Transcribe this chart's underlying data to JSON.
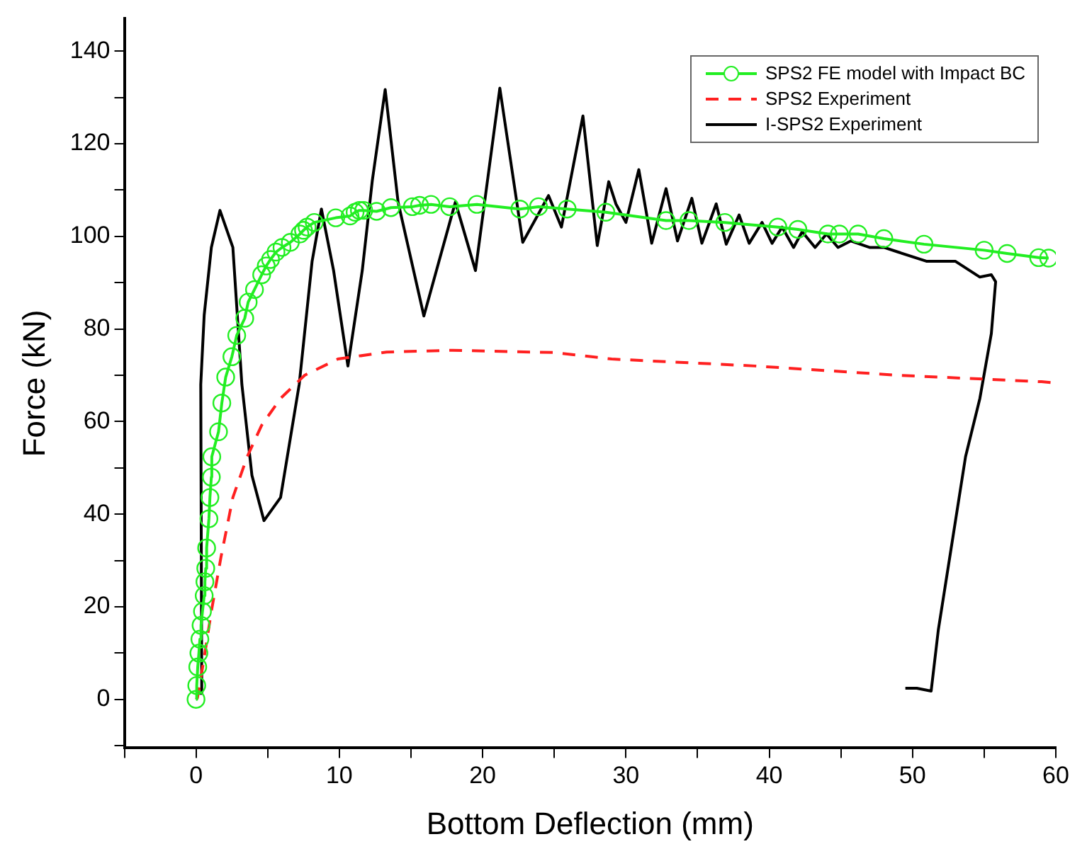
{
  "chart_data": {
    "type": "line",
    "xlabel": "Bottom Deflection (mm)",
    "ylabel": "Force (kN)",
    "xlim": [
      -5,
      60
    ],
    "ylim": [
      -10.5,
      147
    ],
    "xticks": [
      {
        "value": -5,
        "label": null
      },
      0,
      {
        "value": 5,
        "label": null
      },
      10,
      {
        "value": 15,
        "label": null
      },
      20,
      {
        "value": 25,
        "label": null
      },
      30,
      {
        "value": 35,
        "label": null
      },
      40,
      {
        "value": 45,
        "label": null
      },
      50,
      {
        "value": 55,
        "label": null
      },
      60
    ],
    "yticks": [
      {
        "value": -10,
        "label": null
      },
      0,
      {
        "value": 10,
        "label": null
      },
      20,
      {
        "value": 30,
        "label": null
      },
      40,
      {
        "value": 50,
        "label": null
      },
      60,
      {
        "value": 70,
        "label": null
      },
      80,
      {
        "value": 90,
        "label": null
      },
      100,
      {
        "value": 110,
        "label": null
      },
      120,
      {
        "value": 130,
        "label": null
      },
      140
    ],
    "grid": false,
    "legend": "top right",
    "series": [
      {
        "name": "SPS2 FE model with Impact BC",
        "color": "#22ee22",
        "marker": "circle",
        "line_style": "solid",
        "x": [
          0,
          0.05,
          0.12,
          0.2,
          0.27,
          0.35,
          0.45,
          0.57,
          0.62,
          0.68,
          0.74,
          0.9,
          0.97,
          1.07,
          1.1,
          1.57,
          1.8,
          2.07,
          2.5,
          2.84,
          3.4,
          3.64,
          4.08,
          4.58,
          4.9,
          5.2,
          5.58,
          6,
          6.58,
          7.25,
          7.5,
          7.75,
          8.25,
          9.75,
          10.75,
          11.1,
          11.4,
          11.7,
          12.6,
          13.6,
          15.1,
          15.6,
          16.4,
          17.7,
          19.6,
          22.6,
          23.9,
          25.9,
          28.6,
          32.8,
          34.4,
          36.9,
          40.6,
          42,
          44.1,
          44.9,
          46.2,
          48,
          50.8,
          55,
          56.6,
          58.8,
          59.5
        ],
        "values": [
          0,
          3,
          7,
          10,
          13,
          16,
          19,
          22.4,
          25.4,
          28.3,
          32.7,
          39,
          43.6,
          48,
          52.4,
          57.8,
          64,
          69.6,
          74,
          78.6,
          82.3,
          85.8,
          88.5,
          91.7,
          93.6,
          95,
          96.6,
          97.6,
          98.7,
          100.5,
          101.3,
          102,
          103,
          104,
          104.4,
          105.2,
          105.6,
          105.6,
          105.4,
          106.2,
          106.4,
          106.7,
          106.9,
          106.4,
          106.9,
          105.9,
          106.4,
          105.9,
          105.2,
          103.4,
          103.4,
          103,
          102,
          101.5,
          100.5,
          100.5,
          100.5,
          99.5,
          98.3,
          97,
          96.3,
          95.4,
          95.3
        ]
      },
      {
        "name": "SPS2 Experiment",
        "color": "#ff2020",
        "marker": "none",
        "line_style": "dashed",
        "x": [
          0,
          0.1,
          0.57,
          1.07,
          1.74,
          2.57,
          3.57,
          4.58,
          5.9,
          7.58,
          9.9,
          13.3,
          17.9,
          25,
          29,
          39,
          49,
          59,
          60
        ],
        "values": [
          0,
          0.3,
          9,
          19,
          30.7,
          43.6,
          52.4,
          59.2,
          65,
          70,
          73.5,
          75,
          75.4,
          74.9,
          73.5,
          72,
          70,
          68.6,
          68.3
        ]
      },
      {
        "name": "I-SPS2 Experiment",
        "color": "#000000",
        "marker": "none",
        "line_style": "solid",
        "x": [
          0.23,
          0.4,
          0.33,
          0.57,
          1.07,
          1.67,
          2.57,
          3.2,
          3.9,
          4.74,
          5.9,
          7.2,
          8.1,
          8.75,
          9.6,
          10.6,
          11.6,
          12.3,
          13.2,
          14.1,
          15.9,
          16.9,
          18.1,
          19.5,
          21.2,
          22.8,
          24.6,
          25.5,
          27,
          28,
          28.8,
          29.3,
          30,
          30.9,
          31.8,
          32.8,
          33.6,
          34.6,
          35.3,
          36.3,
          37,
          37.9,
          38.6,
          39.5,
          40.2,
          40.9,
          41.7,
          42.3,
          43.2,
          44,
          44.8,
          45.7,
          47,
          48,
          49,
          51,
          53,
          54.7,
          55.5,
          55.8,
          55.5,
          54.7,
          53.7,
          52.7,
          51.8,
          51.3,
          50.3,
          49.5
        ],
        "values": [
          1.3,
          1.3,
          68,
          83,
          97.6,
          105.6,
          97.6,
          68,
          48.4,
          38.6,
          43.6,
          68,
          94.6,
          105.9,
          92.6,
          72,
          92.6,
          112,
          131.7,
          107.4,
          82.8,
          94,
          107.4,
          92.6,
          132,
          98.7,
          108.8,
          102,
          126,
          98,
          111.8,
          107,
          103,
          114.4,
          98.5,
          110.3,
          99,
          108.2,
          98.5,
          107,
          98.3,
          104.6,
          98.5,
          103,
          98.5,
          102,
          97.6,
          101,
          97.6,
          100.5,
          97.6,
          99,
          97.6,
          97.6,
          96.6,
          94.6,
          94.6,
          91.2,
          91.7,
          90.2,
          79,
          65,
          52.4,
          32.7,
          15,
          1.8,
          2.4,
          2.4
        ]
      }
    ]
  }
}
